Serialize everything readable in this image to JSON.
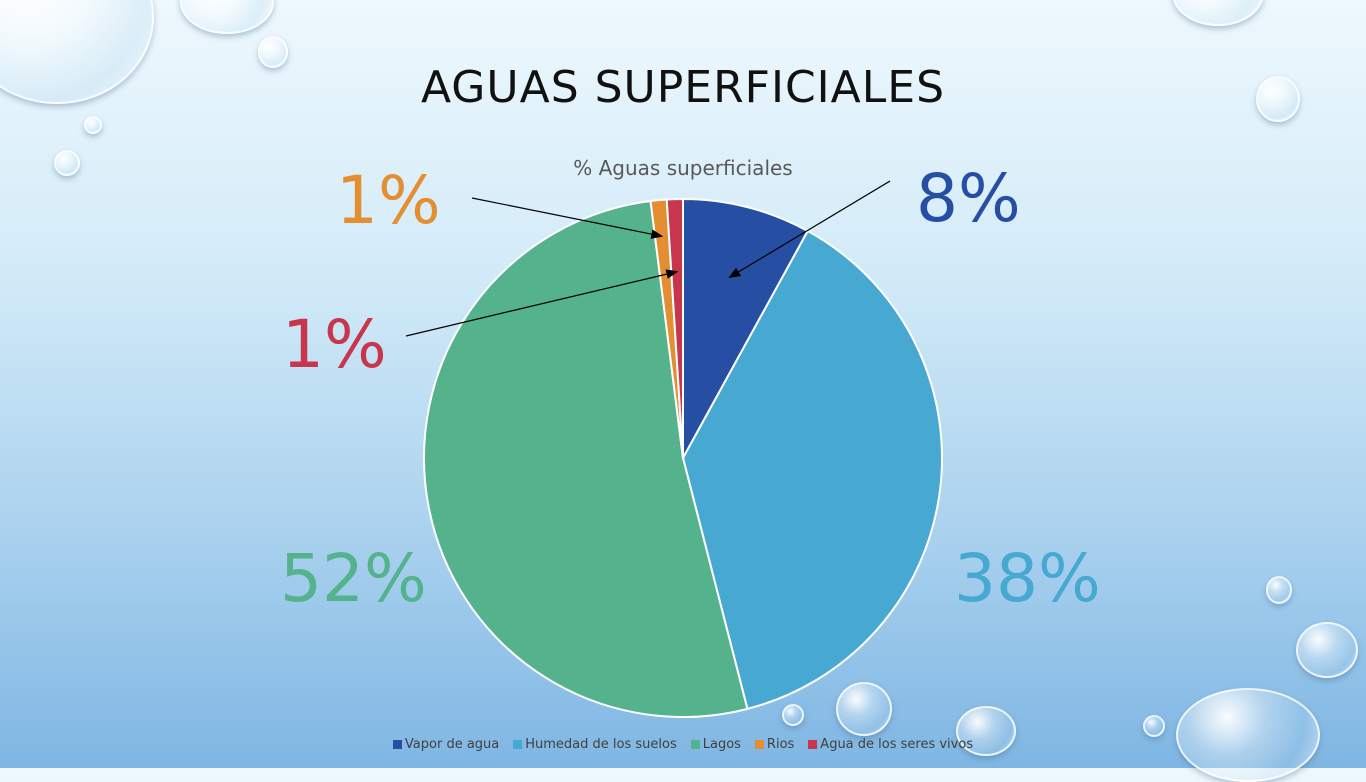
{
  "slide": {
    "title": "AGUAS SUPERFICIALES"
  },
  "chart_data": {
    "type": "pie",
    "title": "% Aguas superficiales",
    "categories": [
      "Vapor de agua",
      "Humedad de los suelos",
      "Lagos",
      "Rios",
      "Agua de los seres vivos"
    ],
    "values": [
      8,
      38,
      52,
      1,
      1
    ],
    "data_labels": [
      "8%",
      "38%",
      "52%",
      "1%",
      "1%"
    ],
    "colors": [
      "#264ea3",
      "#47a8d2",
      "#54b28d",
      "#e38f31",
      "#c8364d"
    ],
    "legend_position": "bottom"
  }
}
